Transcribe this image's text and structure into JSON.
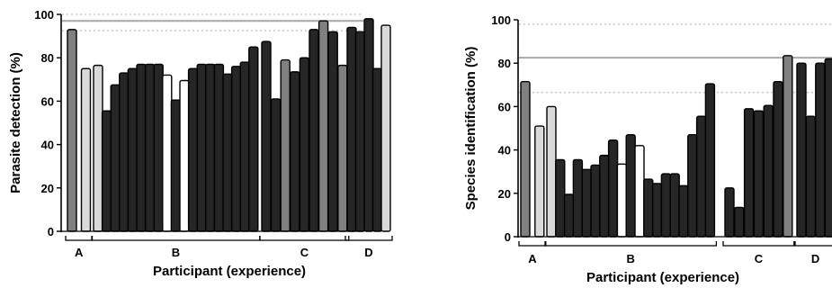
{
  "chart_data": [
    {
      "type": "bar",
      "xlabel": "Participant (experience)",
      "ylabel": "Parasite detection (%)",
      "ylim": [
        0,
        100
      ],
      "yticks": [
        0,
        20,
        40,
        60,
        80,
        100
      ],
      "grid": false,
      "reference_lines": [
        {
          "style": "solid",
          "color": "#a8a8a8",
          "y": 97
        },
        {
          "style": "dotted",
          "color": "#c8c8c8",
          "y": 92.5
        },
        {
          "style": "dotted",
          "color": "#c8c8c8",
          "y": 100
        }
      ],
      "groups": [
        {
          "label": "A",
          "values": [
            93,
            75
          ],
          "fills": [
            "#808080",
            "#d9d9d9"
          ]
        },
        {
          "label": "B",
          "values": [
            76.5,
            55.5,
            67.5,
            73,
            75,
            77,
            77,
            77,
            72,
            60.5,
            69.5,
            75,
            77,
            77,
            77,
            72.5,
            76,
            78,
            85
          ],
          "fills": [
            "#d9d9d9",
            "#262626",
            "#262626",
            "#262626",
            "#262626",
            "#262626",
            "#262626",
            "#262626",
            "#ffffff",
            "#262626",
            "#ffffff",
            "#262626",
            "#262626",
            "#262626",
            "#262626",
            "#262626",
            "#262626",
            "#262626",
            "#262626"
          ]
        },
        {
          "label": "C",
          "values": [
            87.5,
            61,
            79,
            73.5,
            80,
            93,
            97,
            92,
            76.5
          ],
          "fills": [
            "#262626",
            "#262626",
            "#808080",
            "#262626",
            "#262626",
            "#262626",
            "#808080",
            "#262626",
            "#808080"
          ]
        },
        {
          "label": "D",
          "values": [
            94,
            92,
            98,
            75,
            95
          ],
          "fills": [
            "#262626",
            "#262626",
            "#262626",
            "#262626",
            "#d9d9d9"
          ]
        }
      ]
    },
    {
      "type": "bar",
      "xlabel": "Participant (experience)",
      "ylabel": "Species identification (%)",
      "ylim": [
        0,
        100
      ],
      "yticks": [
        0,
        20,
        40,
        60,
        80,
        100
      ],
      "grid": false,
      "reference_lines": [
        {
          "style": "solid",
          "color": "#a8a8a8",
          "y": 82.5
        },
        {
          "style": "dotted",
          "color": "#c8c8c8",
          "y": 66.5
        },
        {
          "style": "dotted",
          "color": "#c8c8c8",
          "y": 98
        }
      ],
      "groups": [
        {
          "label": "A",
          "values": [
            71.5,
            51
          ],
          "fills": [
            "#808080",
            "#d9d9d9"
          ]
        },
        {
          "label": "B",
          "values": [
            60,
            35.5,
            19.5,
            35.5,
            31,
            33,
            37.5,
            44.5,
            33.5,
            47,
            42,
            26.5,
            24.5,
            29,
            29,
            23.5,
            47,
            55.5,
            70.5
          ],
          "fills": [
            "#d9d9d9",
            "#262626",
            "#262626",
            "#262626",
            "#262626",
            "#262626",
            "#262626",
            "#262626",
            "#ffffff",
            "#262626",
            "#ffffff",
            "#262626",
            "#262626",
            "#262626",
            "#262626",
            "#262626",
            "#262626",
            "#262626",
            "#262626"
          ]
        },
        {
          "label": "C",
          "values": [
            22.5,
            13.5,
            59,
            58,
            60.5,
            71.5,
            83.5
          ],
          "fills": [
            "#262626",
            "#262626",
            "#262626",
            "#262626",
            "#262626",
            "#262626",
            "#808080"
          ]
        },
        {
          "label": "D",
          "values": [
            80,
            55.5,
            80,
            82
          ],
          "fills": [
            "#262626",
            "#262626",
            "#262626",
            "#262626"
          ]
        }
      ]
    }
  ]
}
